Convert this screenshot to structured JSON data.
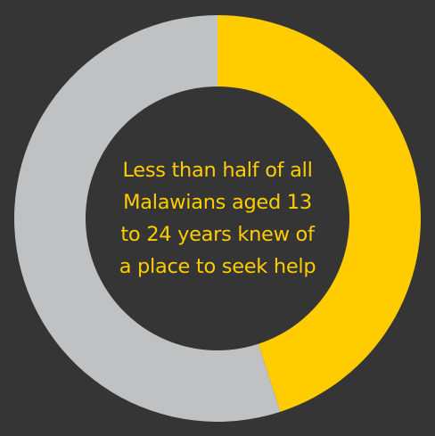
{
  "chart_data": {
    "type": "pie",
    "variant": "donut",
    "title": "",
    "slices": [
      {
        "value": 45,
        "color": "#FFCC00"
      },
      {
        "value": 55,
        "color": "#C0C1C2"
      }
    ],
    "center_text": [
      "Less than half of all",
      "Malawians aged 13",
      "to 24 years knew of",
      "a place to seek help"
    ],
    "center_text_color": "#FFCC00",
    "background_color": "#353535",
    "start_angle": "top",
    "direction": "clockwise"
  }
}
